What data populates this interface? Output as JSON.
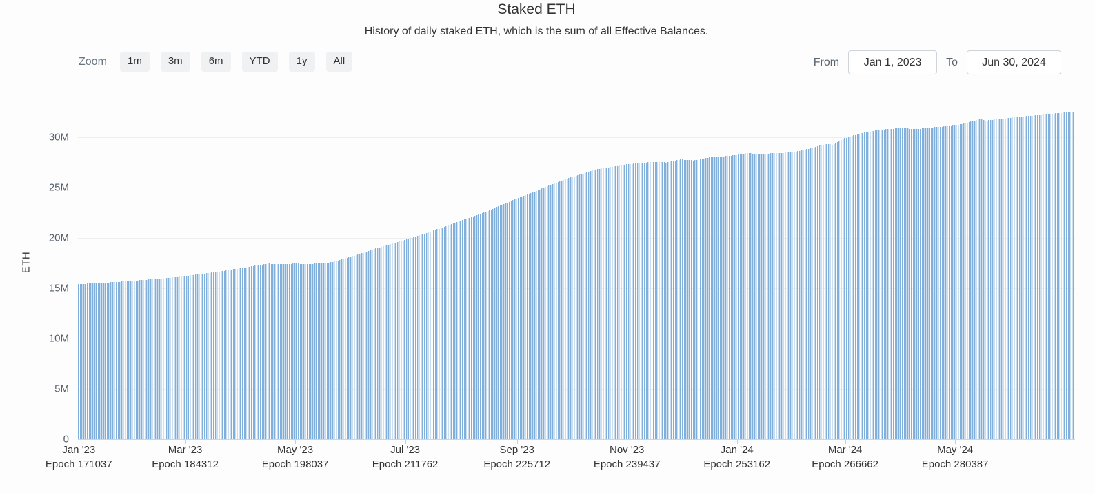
{
  "header": {
    "title": "Staked ETH",
    "subtitle": "History of daily staked ETH, which is the sum of all Effective Balances."
  },
  "toolbar": {
    "zoom_label": "Zoom",
    "zoom_buttons": [
      "1m",
      "3m",
      "6m",
      "YTD",
      "1y",
      "All"
    ],
    "from_label": "From",
    "from_value": "Jan 1, 2023",
    "to_label": "To",
    "to_value": "Jun 30, 2024"
  },
  "chart_data": {
    "type": "bar",
    "title": "Staked ETH",
    "ylabel": "ETH",
    "unit": "millions of ETH",
    "ylim": [
      0,
      33.2
    ],
    "grid": "horizontal",
    "legend": "none",
    "yticks": [
      {
        "value": 0,
        "label": "0"
      },
      {
        "value": 5,
        "label": "5M"
      },
      {
        "value": 10,
        "label": "10M"
      },
      {
        "value": 15,
        "label": "15M"
      },
      {
        "value": 20,
        "label": "20M"
      },
      {
        "value": 25,
        "label": "25M"
      },
      {
        "value": 30,
        "label": "30M"
      }
    ],
    "x_range": {
      "start": "Jan 1, 2023",
      "end": "Jun 30, 2024",
      "days": 553
    },
    "xticks": [
      {
        "day": 0,
        "label": "Jan '23",
        "sublabel": "Epoch 171037"
      },
      {
        "day": 59,
        "label": "Mar '23",
        "sublabel": "Epoch 184312"
      },
      {
        "day": 120,
        "label": "May '23",
        "sublabel": "Epoch 198037"
      },
      {
        "day": 181,
        "label": "Jul '23",
        "sublabel": "Epoch 211762"
      },
      {
        "day": 243,
        "label": "Sep '23",
        "sublabel": "Epoch 225712"
      },
      {
        "day": 304,
        "label": "Nov '23",
        "sublabel": "Epoch 239437"
      },
      {
        "day": 365,
        "label": "Jan '24",
        "sublabel": "Epoch 253162"
      },
      {
        "day": 425,
        "label": "Mar '24",
        "sublabel": "Epoch 266662"
      },
      {
        "day": 486,
        "label": "May '24",
        "sublabel": "Epoch 280387"
      }
    ],
    "series": [
      {
        "name": "Staked ETH",
        "anchors_day_value_m": [
          [
            0,
            15.4
          ],
          [
            15,
            15.55
          ],
          [
            31,
            15.75
          ],
          [
            45,
            15.95
          ],
          [
            59,
            16.2
          ],
          [
            74,
            16.55
          ],
          [
            90,
            17.0
          ],
          [
            100,
            17.3
          ],
          [
            105,
            17.45
          ],
          [
            112,
            17.38
          ],
          [
            120,
            17.45
          ],
          [
            128,
            17.4
          ],
          [
            139,
            17.55
          ],
          [
            145,
            17.8
          ],
          [
            151,
            18.1
          ],
          [
            165,
            18.95
          ],
          [
            181,
            19.8
          ],
          [
            195,
            20.6
          ],
          [
            212,
            21.7
          ],
          [
            226,
            22.6
          ],
          [
            243,
            23.9
          ],
          [
            257,
            24.9
          ],
          [
            273,
            26.0
          ],
          [
            287,
            26.8
          ],
          [
            304,
            27.3
          ],
          [
            318,
            27.55
          ],
          [
            326,
            27.5
          ],
          [
            334,
            27.8
          ],
          [
            341,
            27.7
          ],
          [
            350,
            28.0
          ],
          [
            358,
            28.1
          ],
          [
            365,
            28.25
          ],
          [
            372,
            28.45
          ],
          [
            376,
            28.3
          ],
          [
            384,
            28.4
          ],
          [
            396,
            28.5
          ],
          [
            405,
            28.85
          ],
          [
            415,
            29.35
          ],
          [
            418,
            29.25
          ],
          [
            425,
            29.9
          ],
          [
            434,
            30.4
          ],
          [
            444,
            30.75
          ],
          [
            456,
            30.9
          ],
          [
            465,
            30.82
          ],
          [
            475,
            31.0
          ],
          [
            486,
            31.15
          ],
          [
            495,
            31.55
          ],
          [
            500,
            31.8
          ],
          [
            503,
            31.65
          ],
          [
            510,
            31.8
          ],
          [
            517,
            31.95
          ],
          [
            526,
            32.1
          ],
          [
            536,
            32.25
          ],
          [
            546,
            32.45
          ],
          [
            552,
            32.55
          ]
        ]
      }
    ],
    "colors": {
      "bar_fill": "#cbdff1",
      "bar_edge": "#7fafda",
      "gridline": "#eceef0",
      "axis_line": "#ccd6dd"
    }
  }
}
